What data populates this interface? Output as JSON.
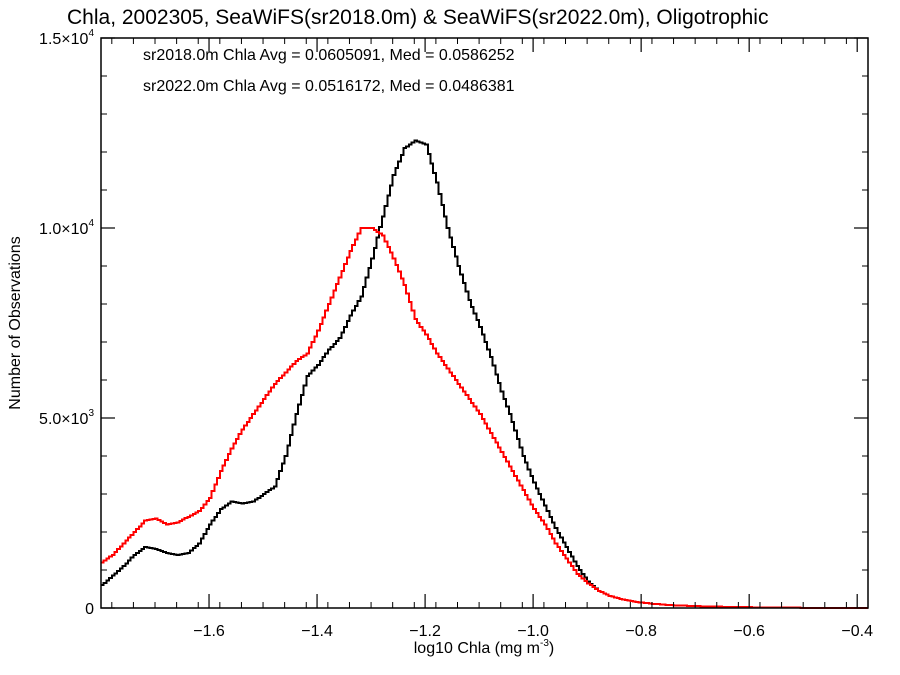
{
  "chart_data": {
    "type": "line",
    "title": "Chla, 2002305, SeaWiFS(sr2018.0m) & SeaWiFS(sr2022.0m), Oligotrophic",
    "xlabel": "log10 Chla (mg m",
    "xlabel_exponent": "-3",
    "xlabel_suffix": ")",
    "ylabel": "Number of Observations",
    "xlim": [
      -1.8,
      -0.38
    ],
    "ylim": [
      0,
      15000
    ],
    "x_ticks": [
      -1.6,
      -1.4,
      -1.2,
      -1.0,
      -0.8,
      -0.6,
      -0.4
    ],
    "x_tick_labels": [
      "−1.6",
      "−1.4",
      "−1.2",
      "−1.0",
      "−0.8",
      "−0.6",
      "−0.4"
    ],
    "y_ticks": [
      0,
      5000,
      10000,
      15000
    ],
    "y_tick_labels": [
      {
        "mantissa": "0",
        "exponent": ""
      },
      {
        "mantissa": "5.0×10",
        "exponent": "3"
      },
      {
        "mantissa": "1.0×10",
        "exponent": "4"
      },
      {
        "mantissa": "1.5×10",
        "exponent": "4"
      }
    ],
    "grid": false,
    "step_width": 0.005,
    "annotations": [
      {
        "text": "sr2018.0m Chla Avg = 0.0605091, Med = 0.0586252",
        "color": "#000000"
      },
      {
        "text": "sr2022.0m Chla Avg = 0.0516172, Med = 0.0486381",
        "color": "#ff0000"
      }
    ],
    "series": [
      {
        "color": "#000000",
        "x": [
          -1.8,
          -1.78,
          -1.76,
          -1.74,
          -1.72,
          -1.7,
          -1.68,
          -1.66,
          -1.64,
          -1.62,
          -1.6,
          -1.58,
          -1.56,
          -1.54,
          -1.52,
          -1.5,
          -1.48,
          -1.46,
          -1.44,
          -1.42,
          -1.4,
          -1.38,
          -1.36,
          -1.34,
          -1.32,
          -1.3,
          -1.28,
          -1.26,
          -1.24,
          -1.22,
          -1.2,
          -1.18,
          -1.16,
          -1.14,
          -1.12,
          -1.1,
          -1.08,
          -1.06,
          -1.04,
          -1.02,
          -1.0,
          -0.98,
          -0.96,
          -0.94,
          -0.92,
          -0.9,
          -0.88,
          -0.86,
          -0.84,
          -0.82,
          -0.8,
          -0.78,
          -0.76,
          -0.74,
          -0.72,
          -0.7,
          -0.68,
          -0.66,
          -0.64,
          -0.62,
          -0.6,
          -0.58,
          -0.56,
          -0.54,
          -0.52,
          -0.5,
          -0.48,
          -0.46,
          -0.44,
          -0.42,
          -0.4,
          -0.38
        ],
        "y": [
          600,
          850,
          1100,
          1400,
          1600,
          1550,
          1450,
          1400,
          1450,
          1700,
          2200,
          2600,
          2800,
          2750,
          2800,
          3000,
          3200,
          4000,
          5100,
          6100,
          6400,
          6800,
          7100,
          7700,
          8200,
          9200,
          10300,
          11400,
          12100,
          12300,
          12200,
          11200,
          10000,
          9000,
          8100,
          7400,
          6600,
          5700,
          4900,
          4000,
          3300,
          2700,
          2100,
          1600,
          1100,
          700,
          450,
          320,
          240,
          180,
          140,
          110,
          90,
          70,
          60,
          50,
          40,
          35,
          30,
          25,
          20,
          15,
          12,
          10,
          8,
          6,
          5,
          4,
          3,
          2,
          2,
          1
        ]
      },
      {
        "color": "#ff0000",
        "x": [
          -1.8,
          -1.78,
          -1.76,
          -1.74,
          -1.72,
          -1.7,
          -1.68,
          -1.66,
          -1.64,
          -1.62,
          -1.6,
          -1.58,
          -1.56,
          -1.54,
          -1.52,
          -1.5,
          -1.48,
          -1.46,
          -1.44,
          -1.42,
          -1.4,
          -1.38,
          -1.36,
          -1.34,
          -1.32,
          -1.3,
          -1.28,
          -1.26,
          -1.24,
          -1.22,
          -1.2,
          -1.18,
          -1.16,
          -1.14,
          -1.12,
          -1.1,
          -1.08,
          -1.06,
          -1.04,
          -1.02,
          -1.0,
          -0.98,
          -0.96,
          -0.94,
          -0.92,
          -0.9,
          -0.88,
          -0.86,
          -0.84,
          -0.82,
          -0.8,
          -0.78,
          -0.76,
          -0.74,
          -0.72,
          -0.7,
          -0.68,
          -0.66,
          -0.64,
          -0.62,
          -0.6,
          -0.58,
          -0.56,
          -0.54,
          -0.52,
          -0.5,
          -0.48,
          -0.46,
          -0.44,
          -0.42,
          -0.4,
          -0.38
        ],
        "y": [
          1200,
          1400,
          1700,
          2000,
          2300,
          2350,
          2200,
          2250,
          2400,
          2550,
          2900,
          3600,
          4200,
          4700,
          5100,
          5500,
          5900,
          6200,
          6500,
          6700,
          7300,
          8000,
          8700,
          9400,
          10000,
          10000,
          9800,
          9200,
          8500,
          7600,
          7200,
          6700,
          6300,
          5900,
          5500,
          5100,
          4600,
          4100,
          3600,
          3100,
          2600,
          2200,
          1700,
          1300,
          900,
          650,
          450,
          320,
          240,
          180,
          140,
          110,
          90,
          70,
          60,
          50,
          40,
          35,
          30,
          25,
          20,
          15,
          12,
          10,
          8,
          6,
          5,
          4,
          3,
          2,
          2,
          1
        ]
      }
    ]
  }
}
